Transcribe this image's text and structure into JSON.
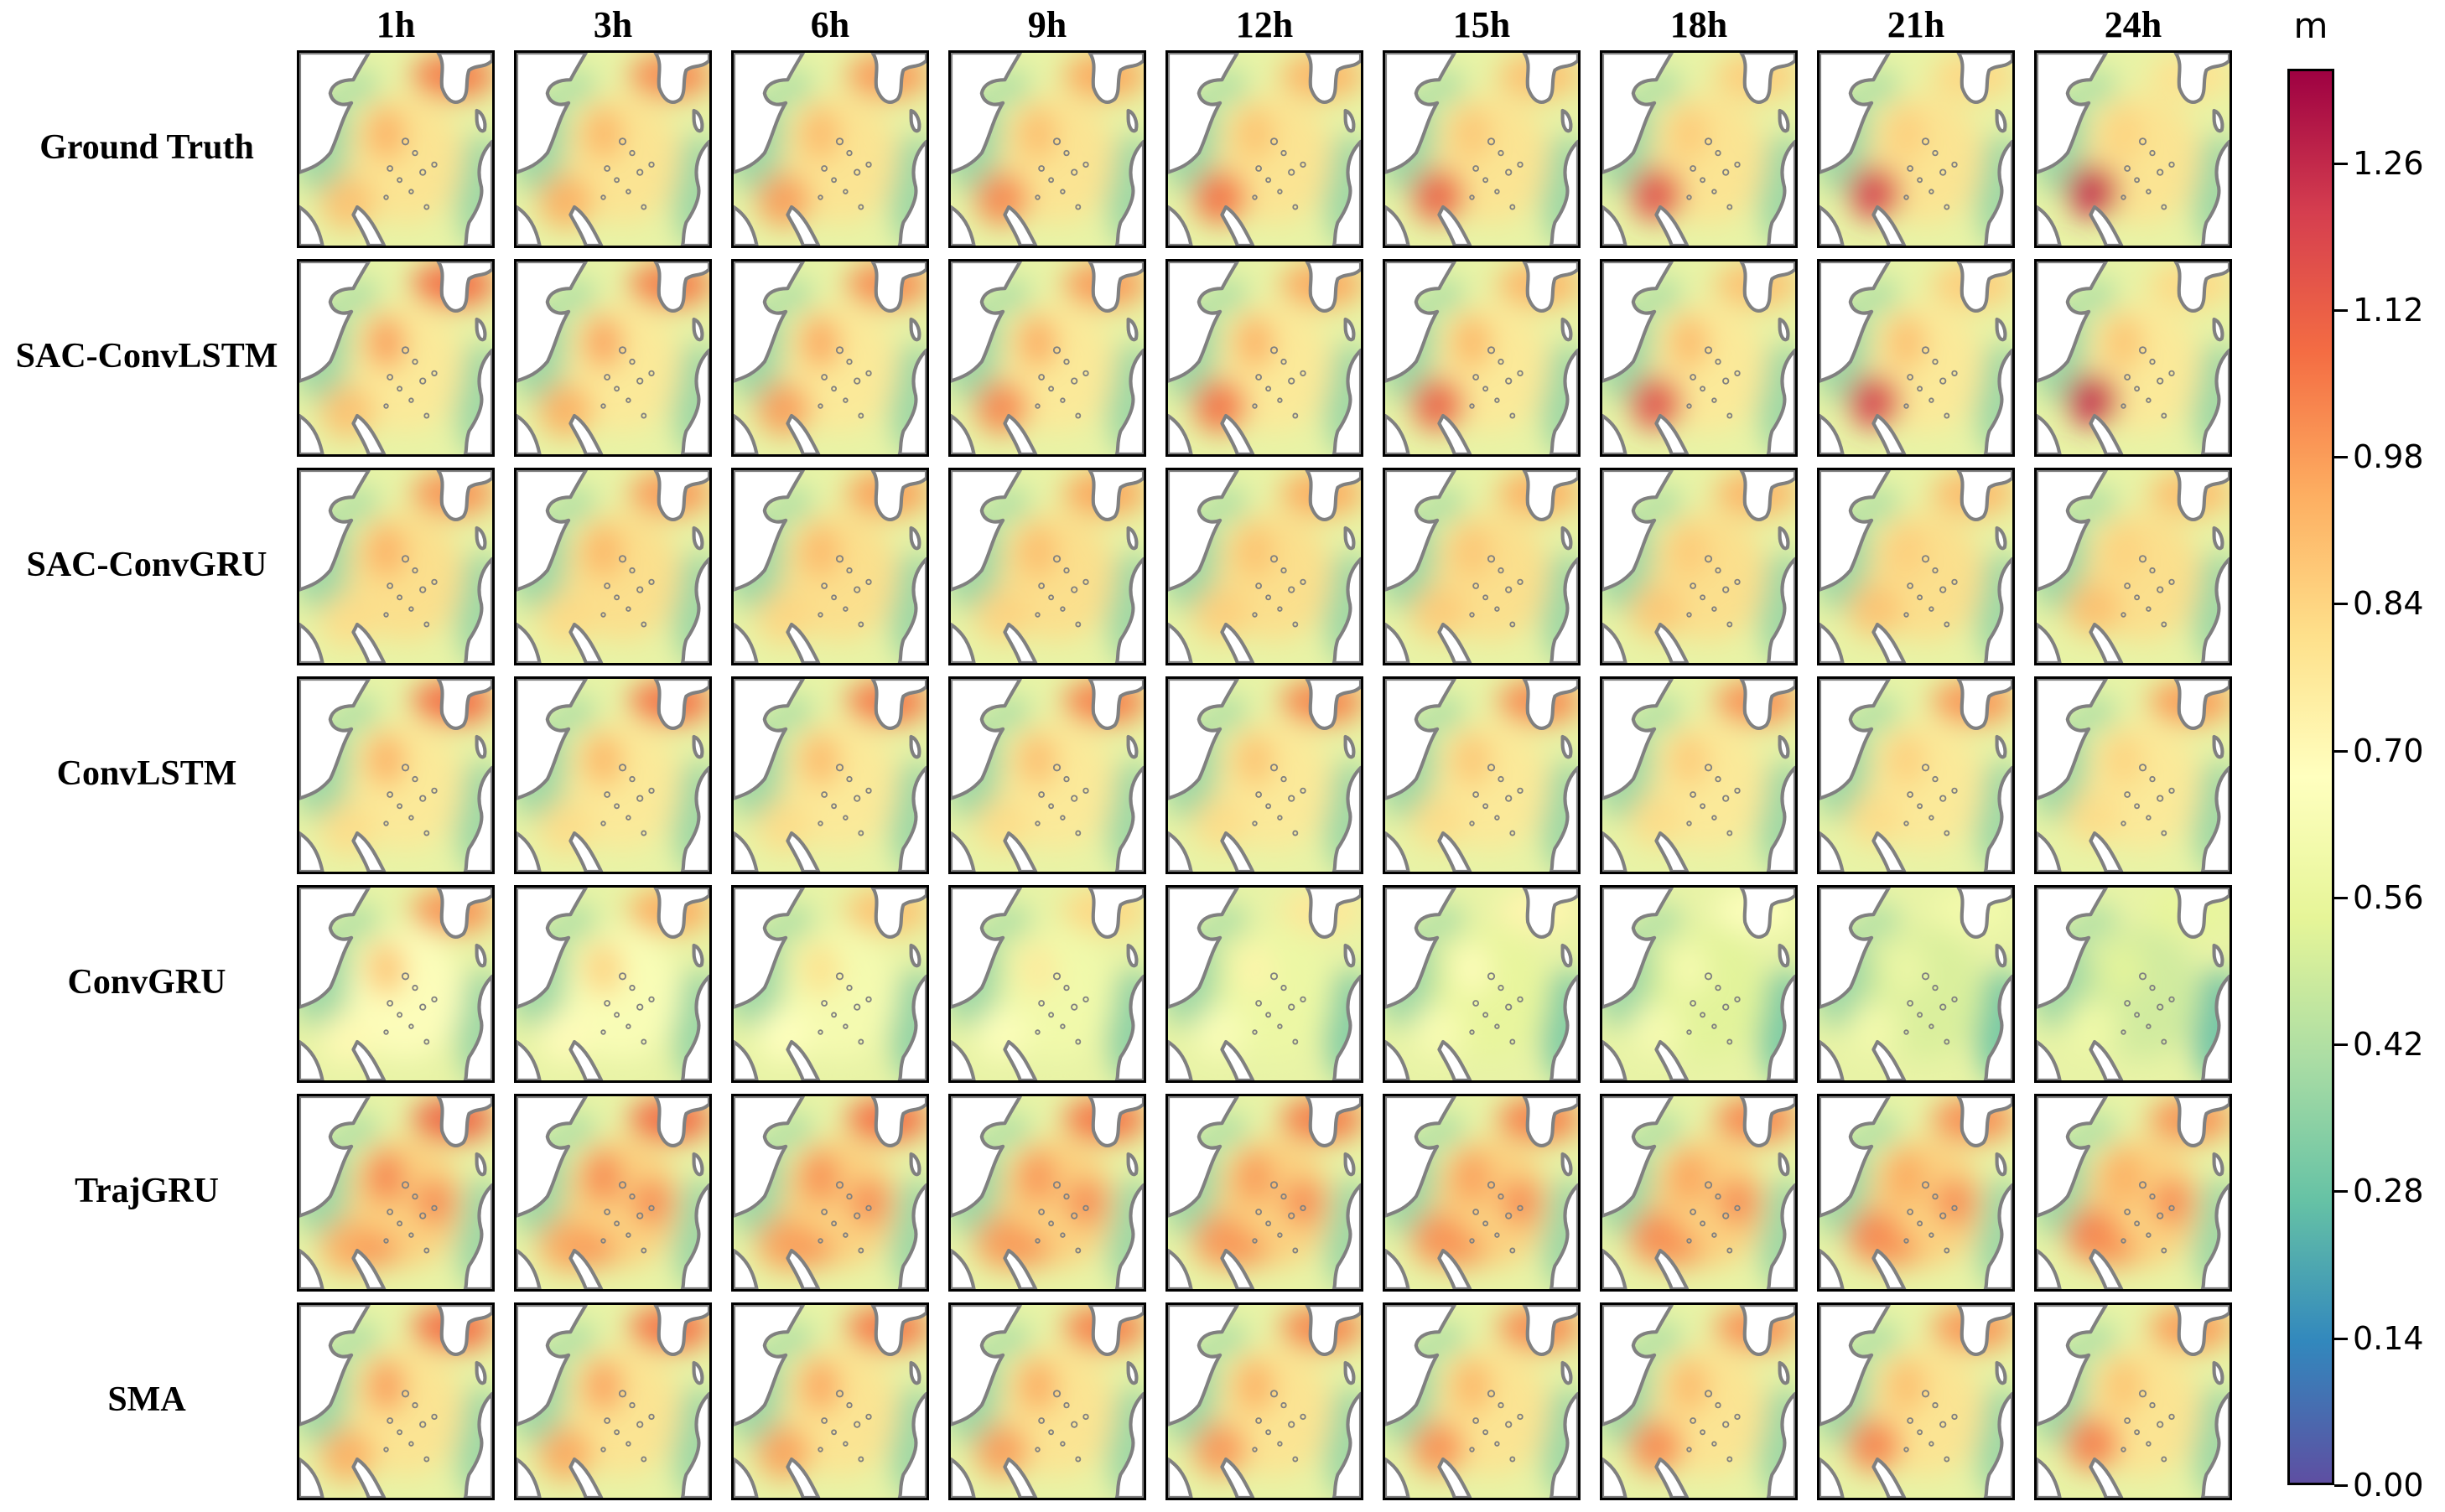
{
  "columns": [
    "1h",
    "3h",
    "6h",
    "9h",
    "12h",
    "15h",
    "18h",
    "21h",
    "24h"
  ],
  "rows": [
    "Ground Truth",
    "SAC-ConvLSTM",
    "SAC-ConvGRU",
    "ConvLSTM",
    "ConvGRU",
    "TrajGRU",
    "SMA"
  ],
  "colorbar": {
    "unit": "m",
    "min": 0.0,
    "max": 1.35,
    "ticks": [
      "0.00",
      "0.14",
      "0.28",
      "0.42",
      "0.56",
      "0.70",
      "0.84",
      "0.98",
      "1.12",
      "1.26"
    ],
    "colormap": "Spectral_r",
    "stops": [
      "#5e4fa2",
      "#3288bd",
      "#66c2a5",
      "#abdda4",
      "#e6f598",
      "#ffffbf",
      "#fee08b",
      "#fdae61",
      "#f46d43",
      "#d53e4f",
      "#9e0142"
    ]
  },
  "map_styles": {
    "ocean_base": "#e8f3a6",
    "land_color": "#ffffff",
    "coast_color": "#808080"
  }
}
